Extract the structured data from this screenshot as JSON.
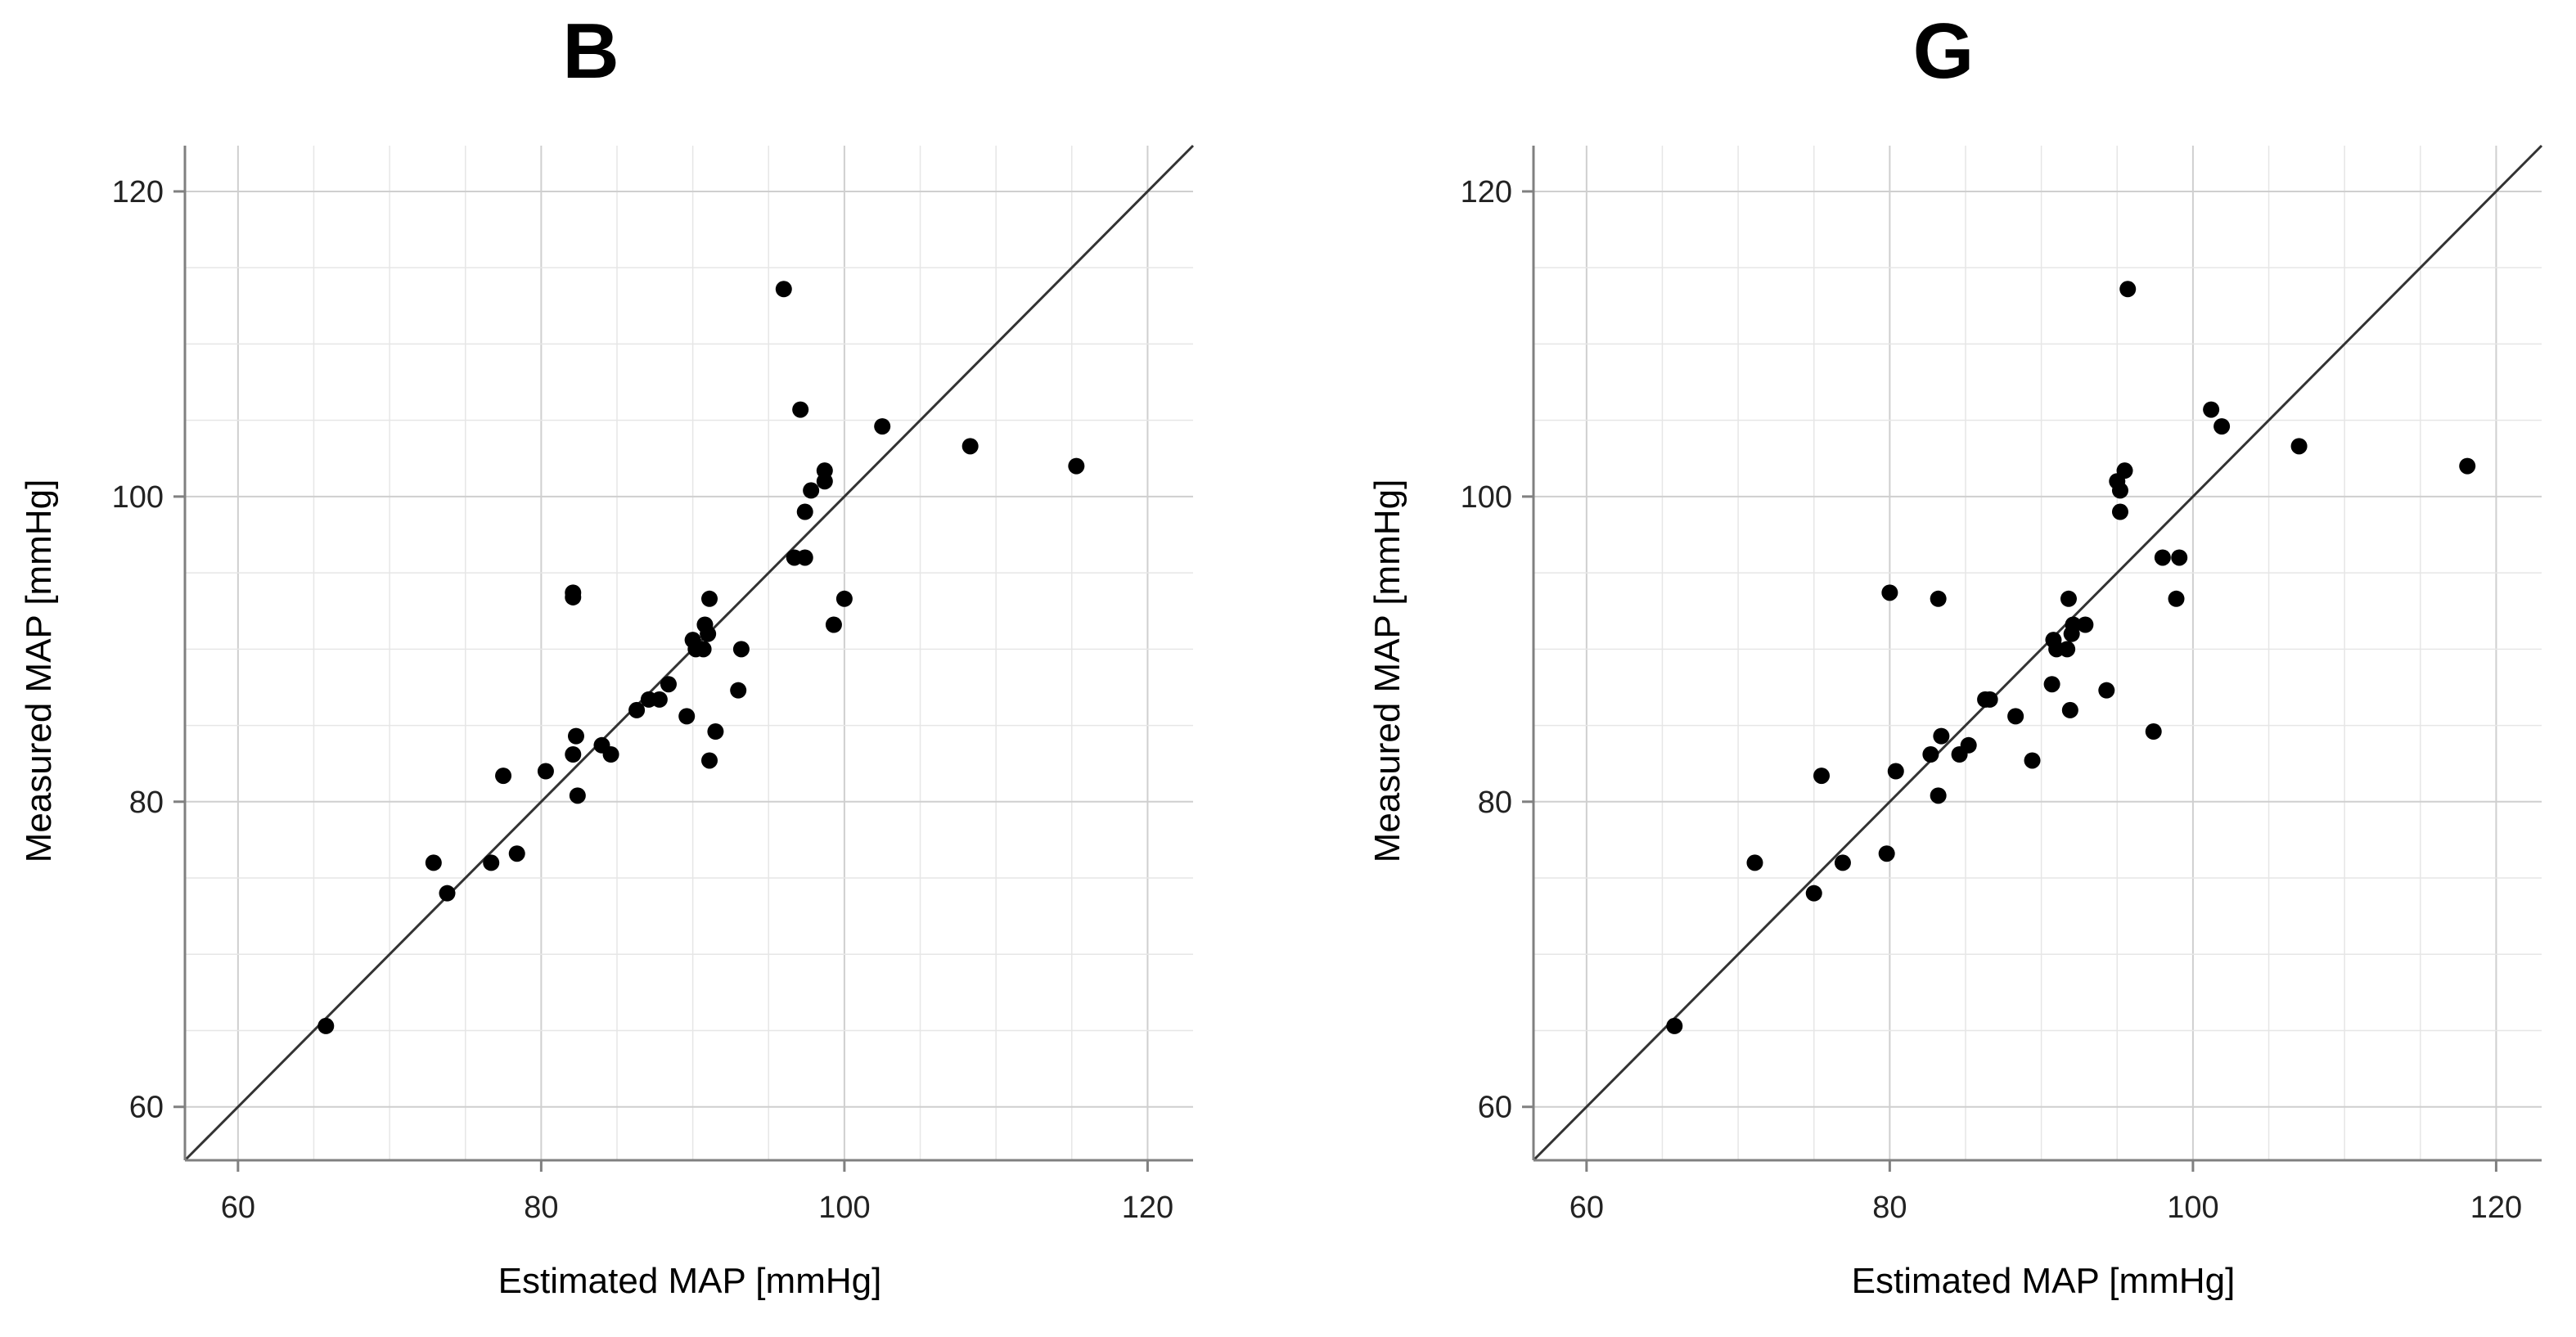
{
  "colors": {
    "point": "#000000",
    "grid": "#d9d9d9",
    "axis": "#808080",
    "identity_line": "#333333",
    "background": "#ffffff"
  },
  "chart_data": [
    {
      "type": "scatter",
      "title": "B",
      "xlabel": "Estimated MAP [mmHg]",
      "ylabel": "Measured MAP [mmHg]",
      "xlim": [
        56.5,
        123
      ],
      "ylim": [
        56.5,
        123
      ],
      "xticks": [
        60,
        80,
        100,
        120
      ],
      "yticks": [
        60,
        80,
        100,
        120
      ],
      "xtick_labels": [
        "60",
        "80",
        "100",
        "120"
      ],
      "ytick_labels": [
        "60",
        "80",
        "100",
        "120"
      ],
      "grid": true,
      "reference_line": "identity y = x",
      "points": [
        [
          65.8,
          65.3
        ],
        [
          72.9,
          76.0
        ],
        [
          73.8,
          74.0
        ],
        [
          76.7,
          76.0
        ],
        [
          77.5,
          81.7
        ],
        [
          78.4,
          76.6
        ],
        [
          80.3,
          82.0
        ],
        [
          82.1,
          93.4
        ],
        [
          82.1,
          93.7
        ],
        [
          82.1,
          83.1
        ],
        [
          82.3,
          84.3
        ],
        [
          82.4,
          80.4
        ],
        [
          84.0,
          83.7
        ],
        [
          84.6,
          83.1
        ],
        [
          86.3,
          86.0
        ],
        [
          87.1,
          86.7
        ],
        [
          87.8,
          86.7
        ],
        [
          88.4,
          87.7
        ],
        [
          89.6,
          85.6
        ],
        [
          90.0,
          90.6
        ],
        [
          90.2,
          90.0
        ],
        [
          90.7,
          90.0
        ],
        [
          90.8,
          91.6
        ],
        [
          91.0,
          91.0
        ],
        [
          91.1,
          93.3
        ],
        [
          91.1,
          82.7
        ],
        [
          91.5,
          84.6
        ],
        [
          93.0,
          87.3
        ],
        [
          93.2,
          90.0
        ],
        [
          96.0,
          113.6
        ],
        [
          96.7,
          96.0
        ],
        [
          97.1,
          105.7
        ],
        [
          97.4,
          96.0
        ],
        [
          97.4,
          99.0
        ],
        [
          97.8,
          100.4
        ],
        [
          98.7,
          101.0
        ],
        [
          98.7,
          101.7
        ],
        [
          99.3,
          91.6
        ],
        [
          100.0,
          93.3
        ],
        [
          102.5,
          104.6
        ],
        [
          108.3,
          103.3
        ],
        [
          115.3,
          102.0
        ]
      ]
    },
    {
      "type": "scatter",
      "title": "G",
      "xlabel": "Estimated MAP [mmHg]",
      "ylabel": "Measured MAP [mmHg]",
      "xlim": [
        56.5,
        123
      ],
      "ylim": [
        56.5,
        123
      ],
      "xticks": [
        60,
        80,
        100,
        120
      ],
      "yticks": [
        60,
        80,
        100,
        120
      ],
      "xtick_labels": [
        "60",
        "80",
        "100",
        "120"
      ],
      "ytick_labels": [
        "60",
        "80",
        "100",
        "120"
      ],
      "grid": true,
      "reference_line": "identity y = x",
      "points": [
        [
          65.8,
          65.3
        ],
        [
          71.1,
          76.0
        ],
        [
          75.0,
          74.0
        ],
        [
          75.5,
          81.7
        ],
        [
          76.9,
          76.0
        ],
        [
          79.8,
          76.6
        ],
        [
          80.0,
          93.7
        ],
        [
          80.4,
          82.0
        ],
        [
          82.7,
          83.1
        ],
        [
          83.2,
          80.4
        ],
        [
          83.2,
          93.3
        ],
        [
          83.4,
          84.3
        ],
        [
          84.6,
          83.1
        ],
        [
          85.2,
          83.7
        ],
        [
          86.3,
          86.7
        ],
        [
          86.6,
          86.7
        ],
        [
          88.3,
          85.6
        ],
        [
          89.4,
          82.7
        ],
        [
          90.7,
          87.7
        ],
        [
          90.8,
          90.6
        ],
        [
          91.0,
          90.0
        ],
        [
          91.7,
          90.0
        ],
        [
          91.8,
          93.3
        ],
        [
          91.9,
          86.0
        ],
        [
          92.0,
          91.0
        ],
        [
          92.1,
          91.6
        ],
        [
          92.9,
          91.6
        ],
        [
          94.3,
          87.3
        ],
        [
          95.0,
          101.0
        ],
        [
          95.2,
          100.4
        ],
        [
          95.2,
          99.0
        ],
        [
          95.5,
          101.7
        ],
        [
          95.7,
          113.6
        ],
        [
          97.4,
          84.6
        ],
        [
          98.0,
          96.0
        ],
        [
          98.9,
          93.3
        ],
        [
          99.1,
          96.0
        ],
        [
          101.2,
          105.7
        ],
        [
          101.9,
          104.6
        ],
        [
          107.0,
          103.3
        ],
        [
          118.1,
          102.0
        ]
      ]
    }
  ]
}
